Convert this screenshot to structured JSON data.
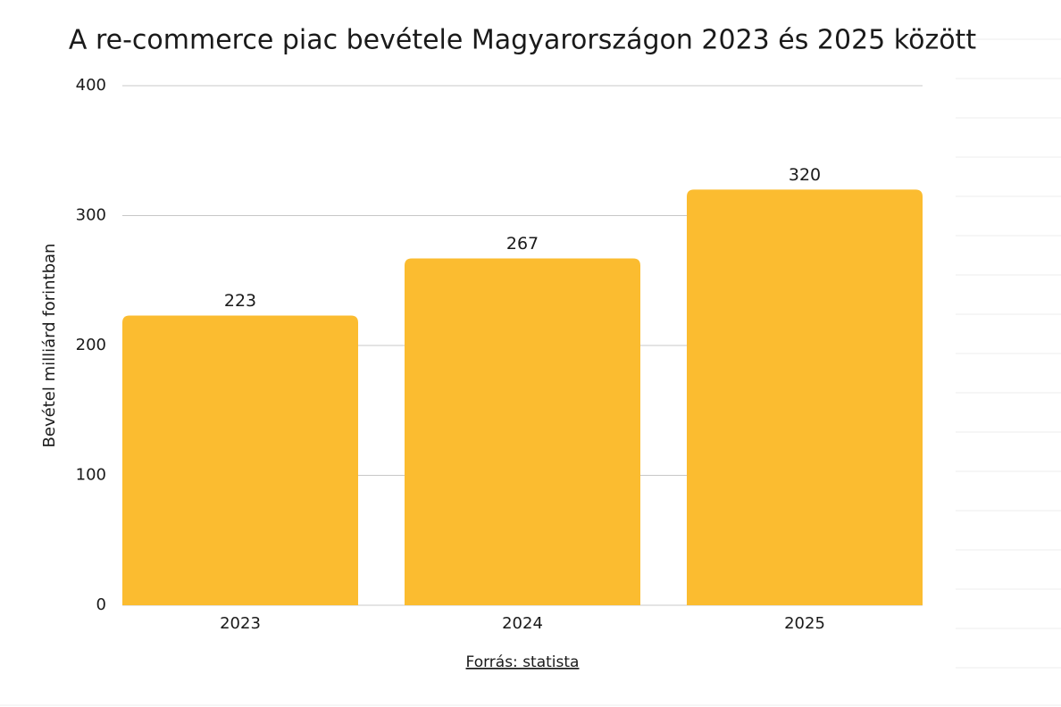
{
  "chart_data": {
    "type": "bar",
    "title": "A re-commerce piac bevétele Magyarországon 2023 és 2025 között",
    "ylabel": "Bevétel milliárd forintban",
    "source": "Forrás: statista",
    "categories": [
      "2023",
      "2024",
      "2025"
    ],
    "values": [
      223,
      267,
      320
    ],
    "color": "#fbbc30",
    "ylim": [
      0,
      400
    ],
    "yticks": [
      0,
      100,
      200,
      300,
      400
    ],
    "grid": true
  }
}
